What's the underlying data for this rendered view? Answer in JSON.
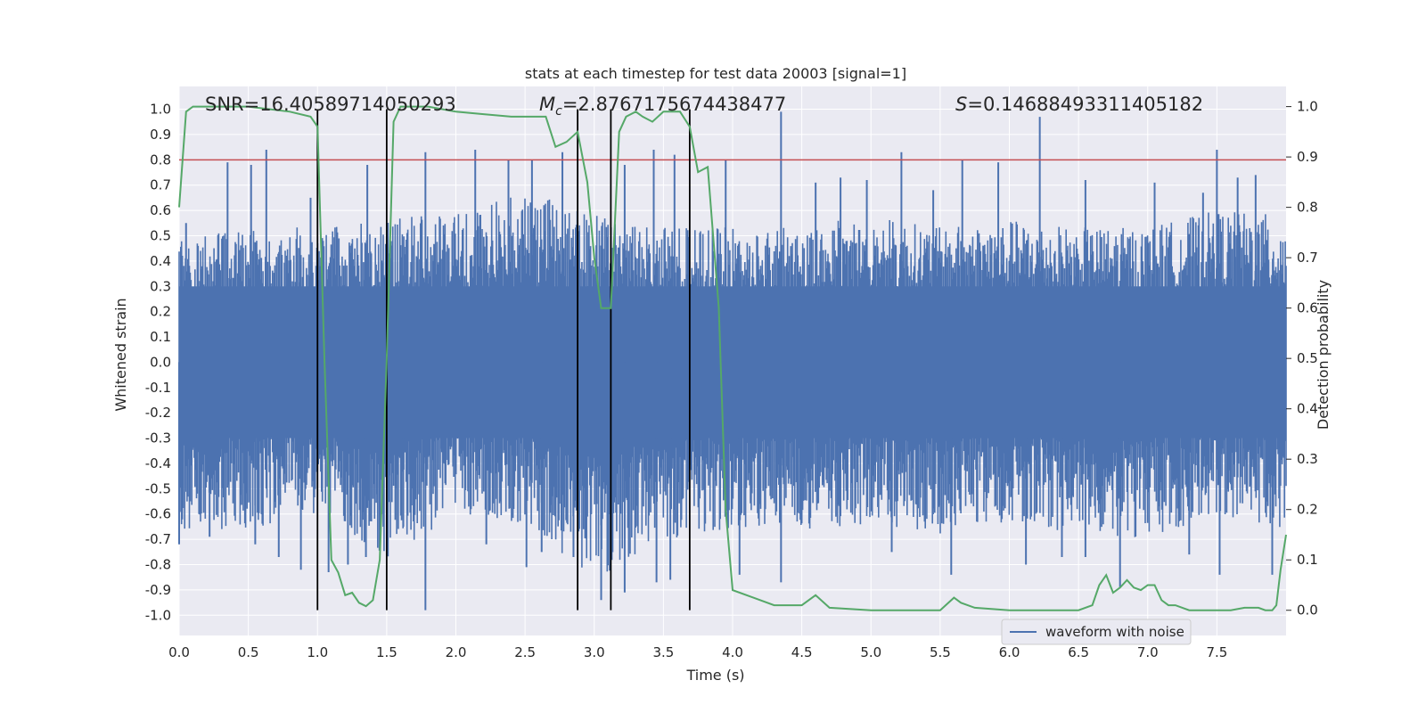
{
  "chart_data": {
    "type": "line",
    "title": "stats at each timestep for test data 20003 [signal=1]",
    "xlabel": "Time (s)",
    "ylabel": "Whitened strain",
    "ylabel_right": "Detection probability",
    "xlim": [
      0.0,
      8.0
    ],
    "ylim": [
      -1.08,
      1.09
    ],
    "ylim_right": [
      -0.05,
      1.04
    ],
    "x_ticks": [
      "0.0",
      "0.5",
      "1.0",
      "1.5",
      "2.0",
      "2.5",
      "3.0",
      "3.5",
      "4.0",
      "4.5",
      "5.0",
      "5.5",
      "6.0",
      "6.5",
      "7.0",
      "7.5"
    ],
    "y_ticks": [
      "1.0",
      "0.9",
      "0.8",
      "0.7",
      "0.6",
      "0.5",
      "0.4",
      "0.3",
      "0.2",
      "0.1",
      "0.0",
      "-0.1",
      "-0.2",
      "-0.3",
      "-0.4",
      "-0.5",
      "-0.6",
      "-0.7",
      "-0.8",
      "-0.9",
      "-1.0"
    ],
    "y_ticks_right": [
      "1.0",
      "0.9",
      "0.8",
      "0.7",
      "0.6",
      "0.5",
      "0.4",
      "0.3",
      "0.2",
      "0.1",
      "0.0"
    ],
    "annotations": {
      "snr": "SNR=16.40589714050293",
      "mc_prefix": "M",
      "mc_sub": "c",
      "mc_value": "=2.8767175674438477",
      "s_prefix": "S",
      "s_value": "=0.14688493311405182"
    },
    "threshold": {
      "value": 0.8,
      "color": "#c44e52"
    },
    "vertical_lines": [
      1.0,
      1.5,
      2.88,
      3.12,
      3.69
    ],
    "vertical_line_range": [
      -0.98,
      1.0
    ],
    "waveform": {
      "name": "waveform with noise",
      "color": "#4c72b0",
      "envelope": [
        [
          0.0,
          0.5,
          -0.72
        ],
        [
          0.5,
          0.55,
          -0.68
        ],
        [
          1.0,
          0.55,
          -0.62
        ],
        [
          1.5,
          0.6,
          -0.8
        ],
        [
          2.0,
          0.6,
          -0.62
        ],
        [
          2.5,
          0.7,
          -0.66
        ],
        [
          3.0,
          0.6,
          -0.9
        ],
        [
          3.5,
          0.55,
          -0.72
        ],
        [
          4.0,
          0.55,
          -0.7
        ],
        [
          4.5,
          0.55,
          -0.68
        ],
        [
          5.0,
          0.6,
          -0.68
        ],
        [
          5.5,
          0.55,
          -0.7
        ],
        [
          6.0,
          0.58,
          -0.65
        ],
        [
          6.5,
          0.55,
          -0.7
        ],
        [
          7.0,
          0.55,
          -0.72
        ],
        [
          7.5,
          0.62,
          -0.62
        ],
        [
          8.0,
          0.6,
          -0.68
        ]
      ],
      "spikes": [
        [
          0.05,
          0.55
        ],
        [
          0.35,
          0.79
        ],
        [
          0.52,
          0.78
        ],
        [
          0.63,
          0.84
        ],
        [
          0.95,
          0.65
        ],
        [
          1.36,
          0.78
        ],
        [
          1.78,
          0.83
        ],
        [
          2.14,
          0.84
        ],
        [
          2.38,
          0.8
        ],
        [
          2.55,
          0.8
        ],
        [
          2.77,
          0.83
        ],
        [
          3.22,
          0.78
        ],
        [
          3.43,
          0.84
        ],
        [
          3.58,
          0.82
        ],
        [
          3.95,
          0.8
        ],
        [
          4.35,
          0.99
        ],
        [
          4.6,
          0.71
        ],
        [
          4.78,
          0.73
        ],
        [
          4.97,
          0.72
        ],
        [
          5.22,
          0.83
        ],
        [
          5.45,
          0.68
        ],
        [
          5.66,
          0.8
        ],
        [
          5.92,
          0.79
        ],
        [
          6.22,
          0.97
        ],
        [
          6.55,
          0.72
        ],
        [
          7.05,
          0.71
        ],
        [
          7.4,
          0.67
        ],
        [
          7.5,
          0.84
        ],
        [
          7.65,
          0.73
        ],
        [
          7.78,
          0.74
        ],
        [
          0.0,
          -0.72
        ],
        [
          0.22,
          -0.69
        ],
        [
          0.55,
          -0.72
        ],
        [
          0.72,
          -0.77
        ],
        [
          0.88,
          -0.82
        ],
        [
          1.08,
          -0.83
        ],
        [
          1.22,
          -0.8
        ],
        [
          1.35,
          -0.77
        ],
        [
          1.62,
          -0.65
        ],
        [
          1.78,
          -0.98
        ],
        [
          2.22,
          -0.72
        ],
        [
          2.51,
          -0.81
        ],
        [
          2.62,
          -0.75
        ],
        [
          2.85,
          -0.77
        ],
        [
          3.05,
          -0.94
        ],
        [
          3.22,
          -0.91
        ],
        [
          3.45,
          -0.87
        ],
        [
          3.55,
          -0.86
        ],
        [
          4.05,
          -0.84
        ],
        [
          4.35,
          -0.87
        ],
        [
          5.15,
          -0.75
        ],
        [
          5.58,
          -0.84
        ],
        [
          6.12,
          -0.8
        ],
        [
          6.38,
          -0.77
        ],
        [
          6.8,
          -0.89
        ],
        [
          6.55,
          -0.77
        ],
        [
          7.3,
          -0.76
        ],
        [
          7.52,
          -0.84
        ],
        [
          7.9,
          -0.84
        ]
      ]
    },
    "probability": {
      "name": "detection probability",
      "color": "#55a868",
      "x": [
        0.0,
        0.05,
        0.1,
        0.2,
        0.5,
        0.8,
        0.95,
        1.0,
        1.05,
        1.1,
        1.15,
        1.2,
        1.25,
        1.3,
        1.35,
        1.4,
        1.45,
        1.5,
        1.55,
        1.6,
        1.65,
        1.8,
        2.0,
        2.2,
        2.4,
        2.55,
        2.65,
        2.72,
        2.8,
        2.88,
        2.95,
        3.0,
        3.05,
        3.12,
        3.18,
        3.23,
        3.3,
        3.35,
        3.42,
        3.5,
        3.58,
        3.62,
        3.69,
        3.75,
        3.82,
        3.9,
        3.95,
        4.0,
        4.15,
        4.3,
        4.5,
        4.6,
        4.7,
        5.0,
        5.3,
        5.5,
        5.6,
        5.65,
        5.75,
        6.0,
        6.5,
        6.6,
        6.65,
        6.7,
        6.75,
        6.8,
        6.85,
        6.9,
        6.95,
        7.0,
        7.05,
        7.1,
        7.15,
        7.2,
        7.25,
        7.3,
        7.5,
        7.6,
        7.7,
        7.8,
        7.85,
        7.9,
        7.93,
        7.96,
        8.0
      ],
      "y": [
        0.8,
        0.99,
        1.0,
        1.0,
        1.0,
        0.99,
        0.98,
        0.96,
        0.5,
        0.1,
        0.075,
        0.03,
        0.035,
        0.015,
        0.008,
        0.02,
        0.1,
        0.5,
        0.97,
        1.0,
        1.0,
        1.0,
        0.99,
        0.985,
        0.98,
        0.98,
        0.98,
        0.92,
        0.93,
        0.95,
        0.85,
        0.7,
        0.6,
        0.6,
        0.95,
        0.98,
        0.99,
        0.98,
        0.97,
        0.99,
        0.99,
        0.99,
        0.96,
        0.87,
        0.88,
        0.6,
        0.2,
        0.04,
        0.025,
        0.01,
        0.01,
        0.03,
        0.005,
        0.0,
        0.0,
        0.0,
        0.025,
        0.015,
        0.005,
        0.0,
        0.0,
        0.01,
        0.05,
        0.07,
        0.035,
        0.045,
        0.06,
        0.045,
        0.04,
        0.05,
        0.05,
        0.02,
        0.01,
        0.01,
        0.005,
        0.0,
        0.0,
        0.0,
        0.005,
        0.005,
        0.0,
        0.0,
        0.01,
        0.08,
        0.15
      ]
    },
    "legend": {
      "position": "lower-center-right",
      "entries": [
        "waveform with noise"
      ]
    },
    "grid": true,
    "colors": {
      "background": "#eaeaf2",
      "grid": "#ffffff",
      "vline": "#000000"
    }
  }
}
